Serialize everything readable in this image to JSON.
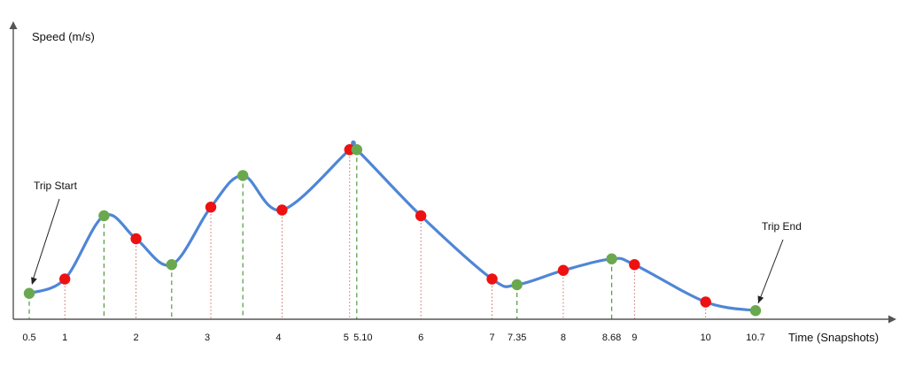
{
  "chart_data": {
    "type": "line",
    "ylabel": "Speed (m/s)",
    "xlabel": "Time (Snapshots)",
    "tick_labels": [
      {
        "x": 0.5,
        "label": "0.5"
      },
      {
        "x": 1,
        "label": "1"
      },
      {
        "x": 2,
        "label": "2"
      },
      {
        "x": 3,
        "label": "3"
      },
      {
        "x": 4,
        "label": "4"
      },
      {
        "x": 5,
        "label": "5"
      },
      {
        "x": 5.1,
        "label": "5.10"
      },
      {
        "x": 6,
        "label": "6"
      },
      {
        "x": 7,
        "label": "7"
      },
      {
        "x": 7.35,
        "label": "7.35"
      },
      {
        "x": 8,
        "label": "8"
      },
      {
        "x": 8.68,
        "label": "8.68"
      },
      {
        "x": 9,
        "label": "9"
      },
      {
        "x": 10,
        "label": "10"
      },
      {
        "x": 10.7,
        "label": "10.7"
      }
    ],
    "curve": [
      {
        "x": 0.5,
        "y": 0.9
      },
      {
        "x": 1.0,
        "y": 1.4
      },
      {
        "x": 1.55,
        "y": 3.6
      },
      {
        "x": 2.0,
        "y": 2.8
      },
      {
        "x": 2.5,
        "y": 1.9
      },
      {
        "x": 3.05,
        "y": 3.9
      },
      {
        "x": 3.5,
        "y": 5.0
      },
      {
        "x": 4.05,
        "y": 3.8
      },
      {
        "x": 5.0,
        "y": 5.9
      },
      {
        "x": 5.1,
        "y": 5.9
      },
      {
        "x": 6.0,
        "y": 3.6
      },
      {
        "x": 7.0,
        "y": 1.4
      },
      {
        "x": 7.35,
        "y": 1.2
      },
      {
        "x": 8.0,
        "y": 1.7
      },
      {
        "x": 8.68,
        "y": 2.1
      },
      {
        "x": 9.0,
        "y": 1.9
      },
      {
        "x": 10.0,
        "y": 0.6
      },
      {
        "x": 10.7,
        "y": 0.3
      }
    ],
    "red_points": [
      {
        "x": 1.0,
        "y": 1.4
      },
      {
        "x": 2.0,
        "y": 2.8
      },
      {
        "x": 3.05,
        "y": 3.9
      },
      {
        "x": 4.05,
        "y": 3.8
      },
      {
        "x": 5.0,
        "y": 5.9
      },
      {
        "x": 6.0,
        "y": 3.6
      },
      {
        "x": 7.0,
        "y": 1.4
      },
      {
        "x": 8.0,
        "y": 1.7
      },
      {
        "x": 9.0,
        "y": 1.9
      },
      {
        "x": 10.0,
        "y": 0.6
      }
    ],
    "green_points": [
      {
        "x": 0.5,
        "y": 0.9
      },
      {
        "x": 1.55,
        "y": 3.6
      },
      {
        "x": 2.5,
        "y": 1.9
      },
      {
        "x": 3.5,
        "y": 5.0
      },
      {
        "x": 5.1,
        "y": 5.9
      },
      {
        "x": 7.35,
        "y": 1.2
      },
      {
        "x": 8.68,
        "y": 2.1
      },
      {
        "x": 10.7,
        "y": 0.3
      }
    ],
    "annotations": [
      {
        "text": "Trip Start",
        "x": 0.5,
        "y": 0.9
      },
      {
        "text": "Trip End",
        "x": 10.7,
        "y": 0.3
      }
    ],
    "colors": {
      "curve": "#4f86d6",
      "red": "#ee1111",
      "green": "#6aa84f",
      "axis": "#555555"
    },
    "grid": false
  }
}
